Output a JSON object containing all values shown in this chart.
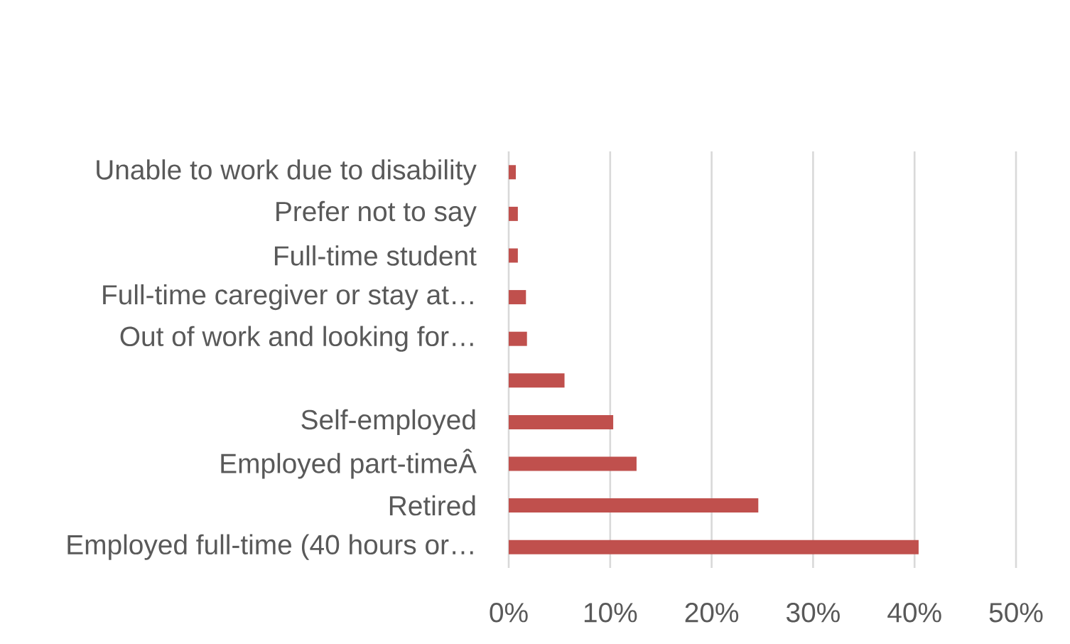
{
  "chart_data": {
    "type": "bar",
    "orientation": "horizontal",
    "categories": [
      "Unable to work due to disability",
      "Prefer not to say",
      "Full-time student",
      "Full-time caregiver or stay at…",
      "Out of work and looking for…",
      null,
      "Self-employed",
      "Employed part-timeÂ",
      "Retired",
      "Employed full-time (40 hours or…"
    ],
    "values": [
      0.7,
      0.9,
      0.9,
      1.7,
      1.8,
      5.5,
      10.3,
      12.6,
      24.6,
      40.4
    ],
    "color": "#c0504d",
    "xlim": [
      0,
      50
    ],
    "xticks": [
      {
        "value": 0,
        "label": "0%"
      },
      {
        "value": 10,
        "label": "10%"
      },
      {
        "value": 20,
        "label": "20%"
      },
      {
        "value": 30,
        "label": "30%"
      },
      {
        "value": 40,
        "label": "40%"
      },
      {
        "value": 50,
        "label": "50%"
      }
    ],
    "grid": "x"
  }
}
